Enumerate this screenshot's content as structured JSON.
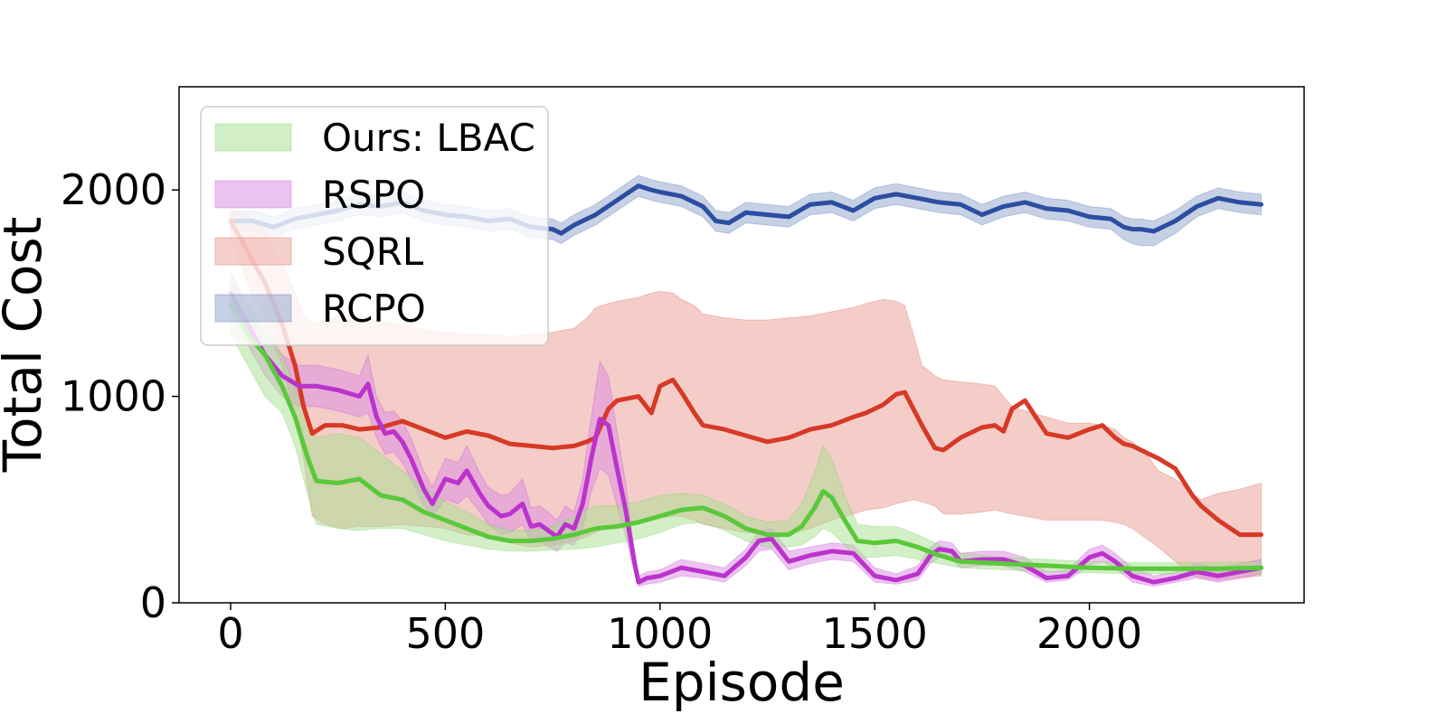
{
  "chart_data": {
    "type": "line",
    "title": "",
    "xlabel": "Episode",
    "ylabel": "Total Cost",
    "xlim": [
      -120,
      2500
    ],
    "ylim": [
      0,
      2500
    ],
    "xticks": [
      0,
      500,
      1000,
      1500,
      2000
    ],
    "yticks": [
      0,
      1000,
      2000
    ],
    "grid": false,
    "legend_position": "top-left",
    "series": [
      {
        "name": "Ours: LBAC",
        "color": "#5ac83a",
        "fill": "#a8e090",
        "x": [
          0,
          40,
          80,
          120,
          150,
          180,
          200,
          250,
          300,
          350,
          400,
          450,
          500,
          550,
          600,
          650,
          700,
          750,
          800,
          850,
          900,
          950,
          1000,
          1050,
          1100,
          1150,
          1200,
          1250,
          1300,
          1330,
          1360,
          1380,
          1400,
          1430,
          1460,
          1500,
          1550,
          1600,
          1650,
          1700,
          1800,
          1900,
          2000,
          2100,
          2200,
          2300,
          2400
        ],
        "values": [
          1450,
          1300,
          1200,
          1050,
          900,
          700,
          590,
          580,
          600,
          520,
          500,
          440,
          400,
          360,
          320,
          300,
          300,
          310,
          330,
          360,
          370,
          390,
          420,
          450,
          460,
          420,
          360,
          330,
          330,
          370,
          460,
          540,
          510,
          400,
          300,
          290,
          300,
          270,
          230,
          200,
          190,
          180,
          170,
          165,
          165,
          165,
          170
        ],
        "lower": [
          1300,
          1150,
          1000,
          920,
          760,
          520,
          380,
          360,
          350,
          360,
          360,
          330,
          300,
          280,
          260,
          250,
          250,
          255,
          260,
          270,
          290,
          310,
          340,
          380,
          390,
          350,
          300,
          270,
          270,
          280,
          320,
          360,
          340,
          280,
          220,
          220,
          230,
          210,
          190,
          170,
          160,
          150,
          145,
          140,
          140,
          140,
          145
        ],
        "upper": [
          1550,
          1450,
          1350,
          1200,
          1050,
          880,
          800,
          820,
          800,
          720,
          640,
          560,
          490,
          440,
          380,
          350,
          350,
          370,
          420,
          470,
          470,
          490,
          520,
          530,
          520,
          480,
          420,
          390,
          400,
          480,
          630,
          760,
          700,
          520,
          380,
          370,
          370,
          330,
          280,
          240,
          220,
          210,
          200,
          195,
          195,
          195,
          200
        ]
      },
      {
        "name": "RSPO",
        "color": "#bb33cc",
        "fill": "#d98ae3",
        "x": [
          0,
          40,
          80,
          120,
          160,
          200,
          250,
          300,
          320,
          340,
          360,
          380,
          400,
          420,
          450,
          470,
          500,
          530,
          550,
          580,
          600,
          630,
          650,
          680,
          700,
          720,
          740,
          760,
          780,
          800,
          820,
          840,
          860,
          880,
          900,
          920,
          940,
          950,
          970,
          1000,
          1050,
          1100,
          1150,
          1200,
          1230,
          1260,
          1300,
          1350,
          1400,
          1450,
          1500,
          1550,
          1600,
          1630,
          1650,
          1680,
          1700,
          1750,
          1800,
          1850,
          1900,
          1950,
          2000,
          2030,
          2060,
          2100,
          2150,
          2200,
          2250,
          2300,
          2350,
          2400
        ],
        "values": [
          1500,
          1350,
          1200,
          1100,
          1050,
          1050,
          1030,
          1000,
          1060,
          900,
          820,
          830,
          780,
          700,
          550,
          480,
          600,
          580,
          640,
          530,
          470,
          420,
          430,
          480,
          370,
          380,
          350,
          320,
          380,
          360,
          480,
          700,
          890,
          860,
          650,
          450,
          200,
          100,
          120,
          130,
          170,
          150,
          130,
          220,
          300,
          310,
          200,
          230,
          250,
          240,
          130,
          110,
          140,
          230,
          260,
          250,
          200,
          210,
          210,
          180,
          120,
          130,
          220,
          240,
          200,
          130,
          100,
          120,
          150,
          130,
          150,
          170
        ],
        "lower": [
          1400,
          1250,
          1100,
          1000,
          950,
          950,
          930,
          900,
          920,
          800,
          720,
          730,
          680,
          600,
          470,
          420,
          500,
          480,
          520,
          440,
          380,
          330,
          340,
          380,
          290,
          300,
          270,
          250,
          290,
          280,
          360,
          540,
          650,
          620,
          470,
          320,
          150,
          80,
          90,
          100,
          130,
          120,
          100,
          180,
          250,
          260,
          160,
          190,
          210,
          200,
          100,
          90,
          110,
          190,
          220,
          210,
          170,
          180,
          180,
          150,
          100,
          110,
          180,
          200,
          170,
          100,
          80,
          100,
          120,
          100,
          120,
          140
        ],
        "upper": [
          1600,
          1450,
          1300,
          1200,
          1150,
          1150,
          1130,
          1100,
          1200,
          1000,
          920,
          930,
          880,
          800,
          640,
          560,
          700,
          680,
          760,
          630,
          560,
          520,
          530,
          600,
          460,
          470,
          440,
          400,
          470,
          440,
          600,
          900,
          1170,
          1100,
          830,
          580,
          260,
          130,
          150,
          160,
          210,
          190,
          170,
          260,
          350,
          360,
          250,
          270,
          290,
          280,
          170,
          140,
          180,
          270,
          300,
          290,
          240,
          250,
          250,
          220,
          150,
          160,
          260,
          280,
          240,
          170,
          130,
          150,
          190,
          170,
          190,
          210
        ]
      },
      {
        "name": "SQRL",
        "color": "#d63a26",
        "fill": "#eda49a",
        "x": [
          0,
          40,
          80,
          120,
          150,
          170,
          190,
          220,
          260,
          300,
          350,
          400,
          450,
          500,
          550,
          600,
          650,
          700,
          750,
          800,
          830,
          850,
          880,
          900,
          950,
          980,
          1000,
          1030,
          1050,
          1080,
          1100,
          1150,
          1200,
          1250,
          1300,
          1350,
          1400,
          1450,
          1480,
          1520,
          1550,
          1570,
          1590,
          1610,
          1640,
          1660,
          1700,
          1750,
          1780,
          1800,
          1820,
          1850,
          1900,
          1950,
          2000,
          2030,
          2060,
          2080,
          2100,
          2140,
          2160,
          2200,
          2240,
          2260,
          2300,
          2350,
          2400
        ],
        "values": [
          1850,
          1700,
          1550,
          1350,
          1150,
          950,
          820,
          860,
          860,
          840,
          850,
          880,
          840,
          800,
          830,
          810,
          770,
          760,
          750,
          760,
          780,
          800,
          940,
          980,
          1000,
          920,
          1050,
          1080,
          1020,
          920,
          860,
          840,
          810,
          780,
          800,
          840,
          860,
          900,
          920,
          960,
          1010,
          1020,
          940,
          860,
          750,
          740,
          800,
          850,
          860,
          830,
          940,
          980,
          820,
          800,
          840,
          860,
          800,
          770,
          760,
          720,
          700,
          650,
          520,
          470,
          400,
          330,
          330
        ],
        "lower": [
          1750,
          1550,
          1350,
          1150,
          900,
          700,
          420,
          380,
          360,
          370,
          370,
          380,
          370,
          360,
          330,
          320,
          290,
          270,
          280,
          300,
          320,
          340,
          370,
          380,
          400,
          410,
          410,
          420,
          420,
          400,
          380,
          360,
          340,
          330,
          330,
          360,
          400,
          430,
          450,
          460,
          480,
          490,
          500,
          490,
          470,
          430,
          430,
          440,
          450,
          440,
          430,
          420,
          400,
          400,
          400,
          400,
          390,
          380,
          360,
          300,
          270,
          200,
          130,
          120,
          110,
          120,
          130
        ],
        "upper": [
          1900,
          1880,
          1800,
          1650,
          1500,
          1400,
          1350,
          1370,
          1390,
          1390,
          1360,
          1350,
          1320,
          1310,
          1300,
          1300,
          1290,
          1300,
          1310,
          1330,
          1380,
          1430,
          1450,
          1460,
          1480,
          1500,
          1510,
          1500,
          1470,
          1440,
          1400,
          1380,
          1370,
          1370,
          1380,
          1390,
          1410,
          1430,
          1450,
          1470,
          1460,
          1440,
          1300,
          1150,
          1100,
          1080,
          1070,
          1060,
          1050,
          1000,
          950,
          930,
          900,
          870,
          870,
          860,
          840,
          800,
          780,
          700,
          640,
          600,
          530,
          500,
          530,
          550,
          580
        ]
      },
      {
        "name": "RCPO",
        "color": "#2b4ea0",
        "fill": "#8fa3cc",
        "x": [
          0,
          50,
          100,
          150,
          200,
          250,
          300,
          350,
          400,
          450,
          500,
          550,
          600,
          650,
          700,
          750,
          770,
          800,
          850,
          900,
          950,
          980,
          1000,
          1050,
          1100,
          1130,
          1160,
          1200,
          1250,
          1300,
          1350,
          1400,
          1450,
          1500,
          1550,
          1600,
          1650,
          1700,
          1750,
          1800,
          1850,
          1900,
          1950,
          2000,
          2050,
          2080,
          2100,
          2120,
          2150,
          2200,
          2250,
          2300,
          2350,
          2400
        ],
        "values": [
          1850,
          1850,
          1820,
          1860,
          1880,
          1900,
          1930,
          1920,
          1940,
          1900,
          1880,
          1870,
          1850,
          1860,
          1820,
          1810,
          1790,
          1830,
          1880,
          1950,
          2020,
          2000,
          1990,
          1970,
          1920,
          1850,
          1840,
          1890,
          1880,
          1870,
          1930,
          1940,
          1900,
          1960,
          1980,
          1960,
          1940,
          1930,
          1880,
          1920,
          1940,
          1910,
          1900,
          1870,
          1860,
          1820,
          1810,
          1810,
          1800,
          1850,
          1920,
          1960,
          1940,
          1930
        ],
        "lower": [
          1800,
          1800,
          1770,
          1810,
          1830,
          1850,
          1880,
          1870,
          1890,
          1850,
          1830,
          1820,
          1800,
          1810,
          1770,
          1760,
          1740,
          1780,
          1830,
          1900,
          1970,
          1950,
          1940,
          1920,
          1870,
          1800,
          1790,
          1840,
          1830,
          1820,
          1880,
          1890,
          1850,
          1910,
          1930,
          1910,
          1890,
          1880,
          1830,
          1870,
          1890,
          1860,
          1850,
          1820,
          1810,
          1760,
          1740,
          1730,
          1730,
          1790,
          1870,
          1910,
          1890,
          1880
        ],
        "upper": [
          1900,
          1900,
          1870,
          1910,
          1930,
          1950,
          1980,
          1970,
          1990,
          1950,
          1930,
          1920,
          1900,
          1910,
          1870,
          1860,
          1840,
          1880,
          1930,
          2000,
          2070,
          2050,
          2040,
          2020,
          1970,
          1900,
          1890,
          1940,
          1930,
          1920,
          1980,
          1990,
          1950,
          2010,
          2030,
          2010,
          1990,
          1980,
          1930,
          1970,
          1990,
          1960,
          1950,
          1920,
          1910,
          1870,
          1860,
          1860,
          1850,
          1900,
          1970,
          2010,
          1990,
          1980
        ]
      }
    ]
  }
}
